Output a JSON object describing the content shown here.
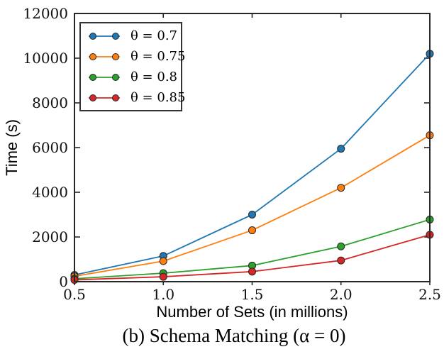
{
  "figure": {
    "ylabel": "Time (s)",
    "xlabel": "Number of Sets (in millions)",
    "caption": "(b) Schema Matching (α = 0)"
  },
  "chart_data": {
    "type": "line",
    "title": "",
    "xlabel": "Number of Sets (in millions)",
    "ylabel": "Time (s)",
    "x": [
      0.5,
      1.0,
      1.5,
      2.0,
      2.5
    ],
    "xtick_labels": [
      "0.5",
      "1.0",
      "1.5",
      "2.0",
      "2.5"
    ],
    "yticks": [
      0,
      2000,
      4000,
      6000,
      8000,
      10000,
      12000
    ],
    "xlim": [
      0.5,
      2.5
    ],
    "ylim": [
      0,
      12000
    ],
    "grid": false,
    "legend_position": "upper-left",
    "marker": "circle",
    "axis_color": "#262626",
    "marker_edge_color": "#262626",
    "series": [
      {
        "name": "θ = 0.7",
        "color": "#1f77b4",
        "values": [
          300,
          1150,
          3000,
          5950,
          10200
        ]
      },
      {
        "name": "θ = 0.75",
        "color": "#ff7f0e",
        "values": [
          240,
          920,
          2300,
          4200,
          6550
        ]
      },
      {
        "name": "θ = 0.8",
        "color": "#2ca02c",
        "values": [
          130,
          380,
          720,
          1580,
          2780
        ]
      },
      {
        "name": "θ = 0.85",
        "color": "#d62728",
        "values": [
          80,
          220,
          450,
          950,
          2100
        ]
      }
    ],
    "caption": "(b) Schema Matching (α = 0)"
  }
}
